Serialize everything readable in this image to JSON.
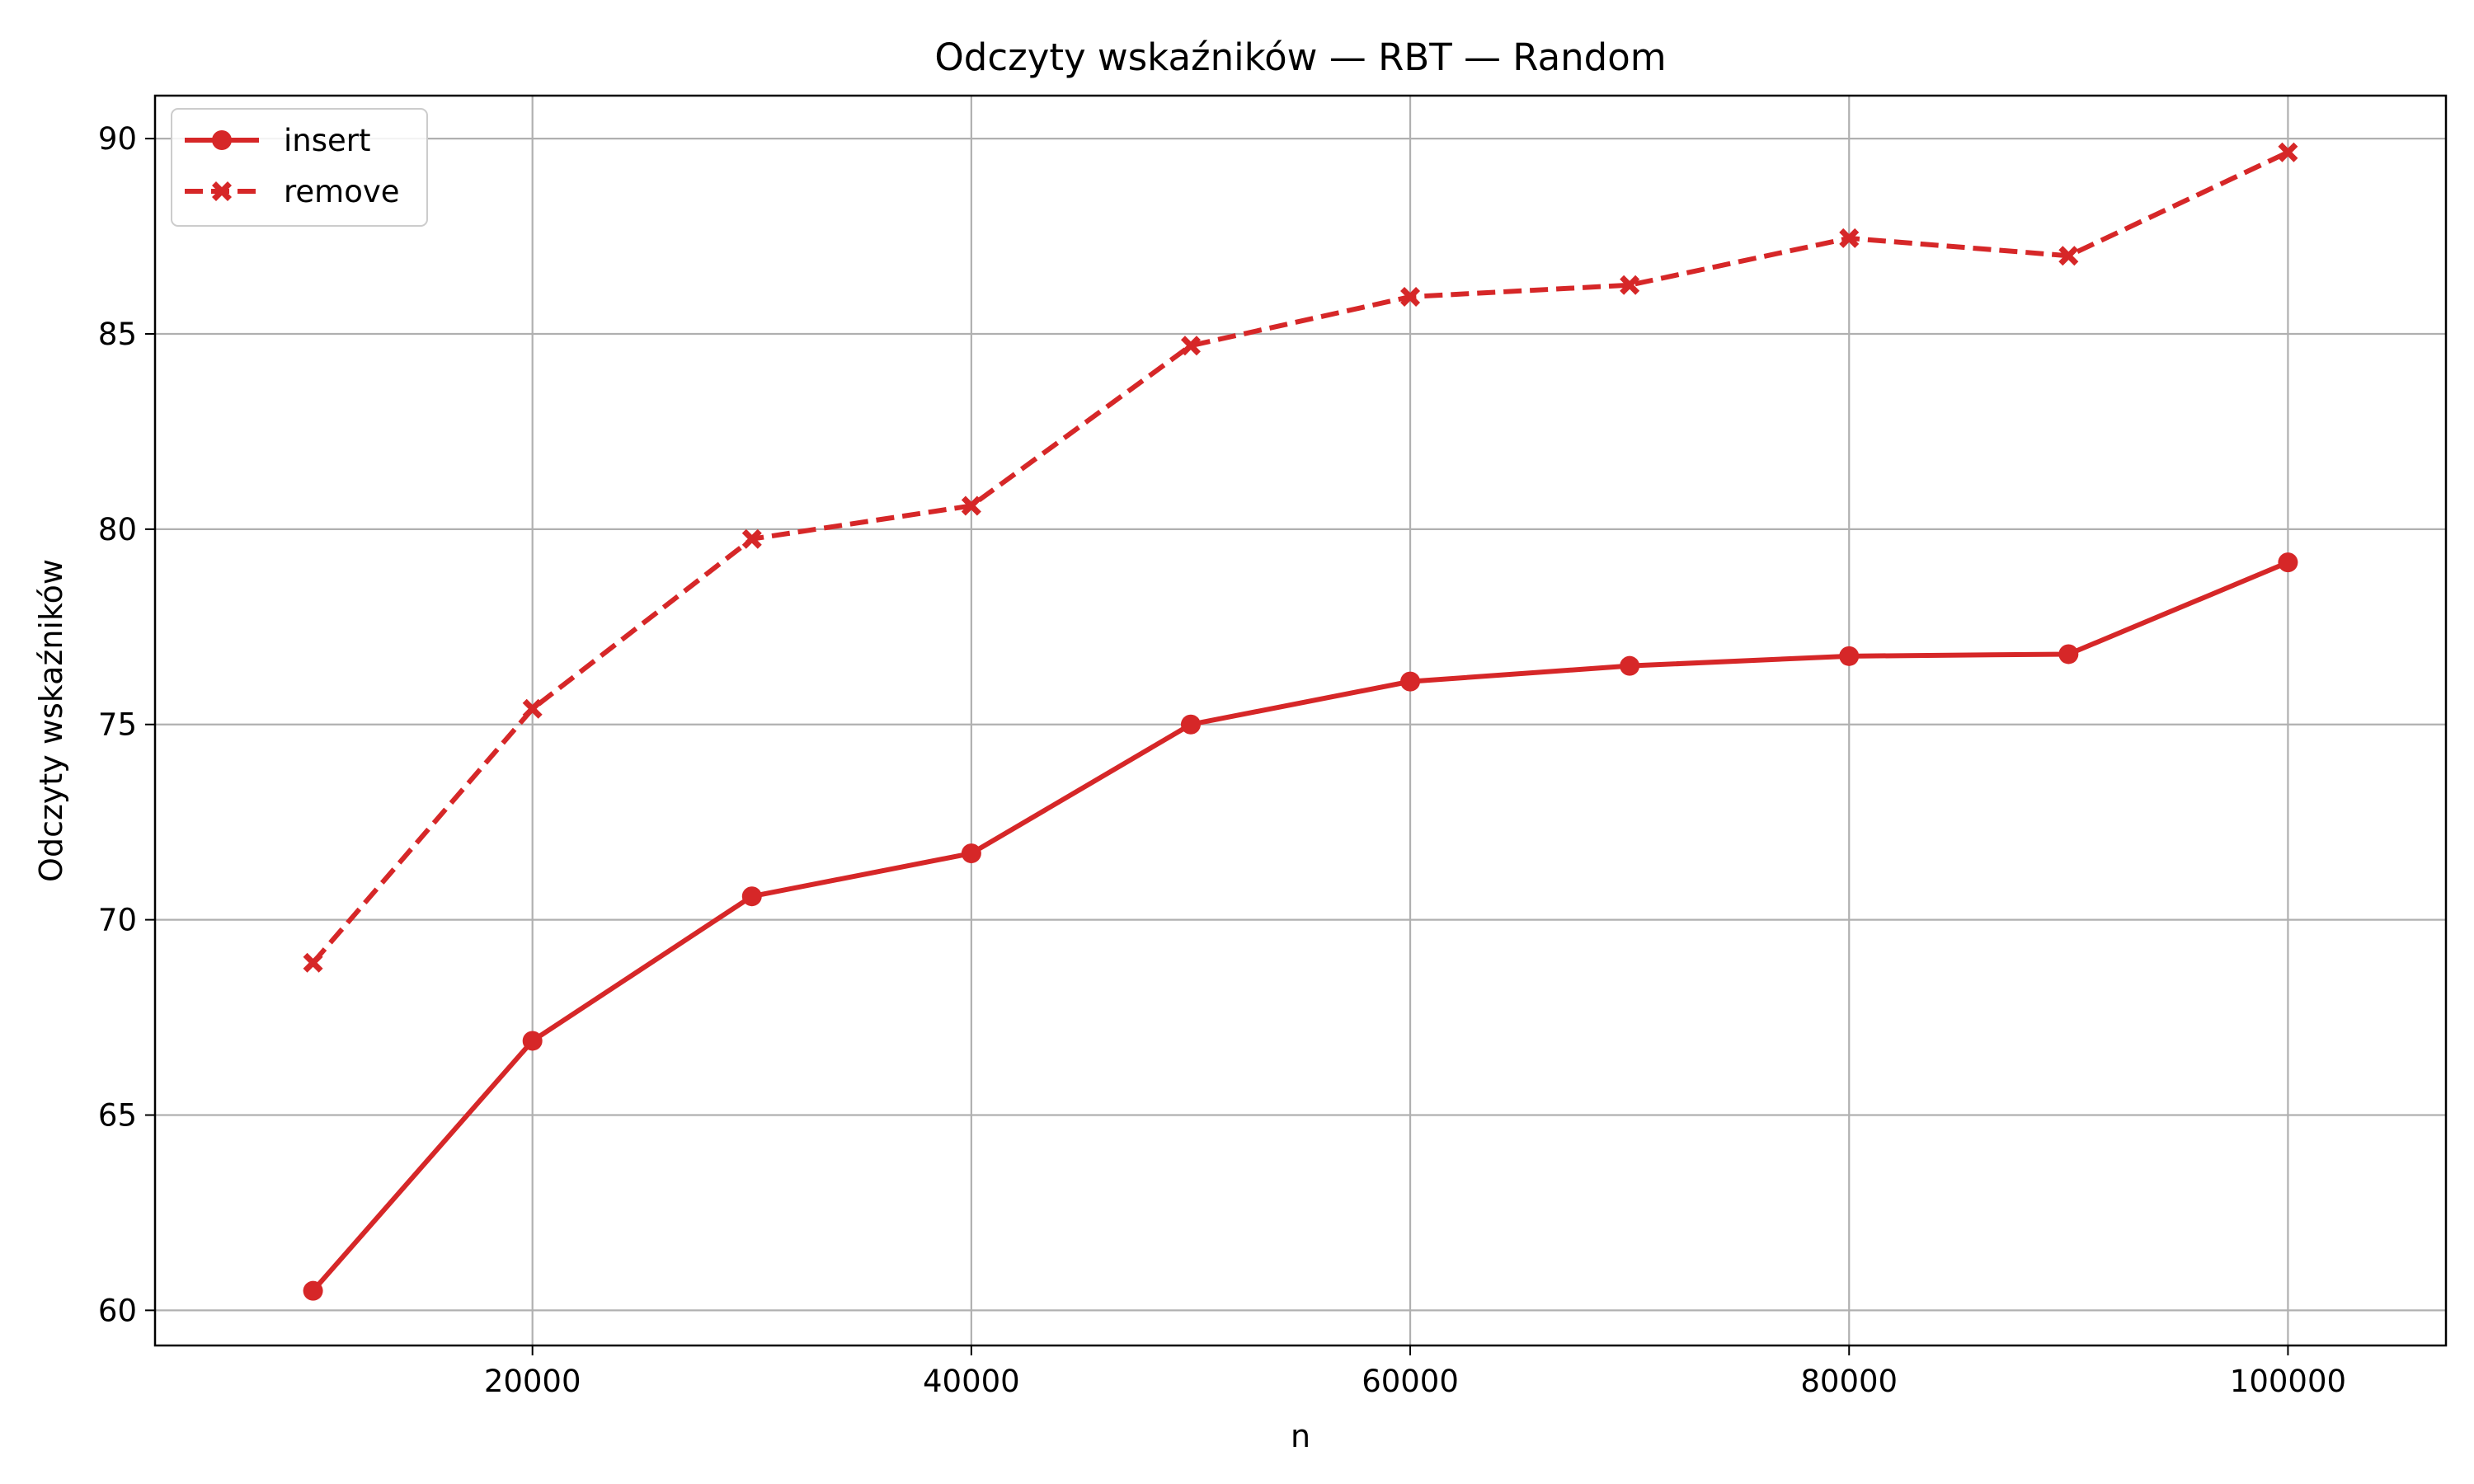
{
  "chart_data": {
    "type": "line",
    "title": "Odczyty wskaźników — RBT — Random",
    "xlabel": "n",
    "ylabel": "Odczyty wskaźników",
    "x": [
      10000,
      20000,
      30000,
      40000,
      50000,
      60000,
      70000,
      80000,
      90000,
      100000
    ],
    "xlim": [
      2800,
      107200
    ],
    "ylim": [
      59.1,
      91.1
    ],
    "xticks": [
      20000,
      40000,
      60000,
      80000,
      100000
    ],
    "yticks": [
      60,
      65,
      70,
      75,
      80,
      85,
      90
    ],
    "grid": true,
    "legend_position": "top-left",
    "series": [
      {
        "name": "insert",
        "color": "#d62728",
        "line_style": "solid",
        "marker": "circle",
        "values": [
          60.5,
          66.9,
          70.6,
          71.7,
          75.0,
          76.1,
          76.5,
          76.75,
          76.8,
          79.15
        ]
      },
      {
        "name": "remove",
        "color": "#d62728",
        "line_style": "dashed",
        "marker": "x-filled",
        "values": [
          68.9,
          75.4,
          79.75,
          80.6,
          84.7,
          85.95,
          86.25,
          87.45,
          87.0,
          89.65
        ]
      }
    ]
  }
}
